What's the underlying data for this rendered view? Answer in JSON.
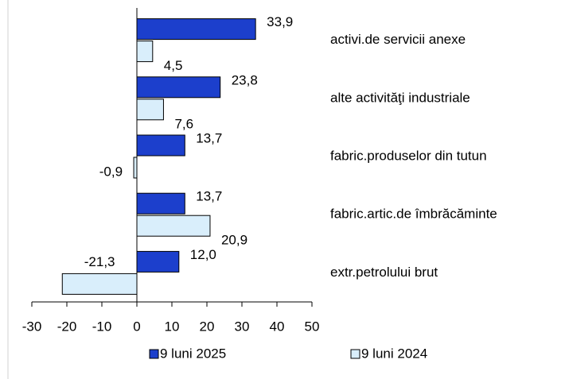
{
  "chart_data": {
    "type": "hbar",
    "categories": [
      "activi.de servicii anexe",
      "alte activităţi industriale",
      "fabric.produselor din tutun",
      "fabric.artic.de îmbrăcăminte",
      "extr.petrolului brut"
    ],
    "series": [
      {
        "name": "9 luni 2025",
        "color": "#1c3fcc",
        "values": [
          33.9,
          23.8,
          13.7,
          13.7,
          12.0
        ],
        "value_labels": [
          "33,9",
          "23,8",
          "13,7",
          "13,7",
          "12,0"
        ]
      },
      {
        "name": "9 luni 2024",
        "color": "#d9eefb",
        "values": [
          4.5,
          7.6,
          -0.9,
          20.9,
          -21.3
        ],
        "value_labels": [
          "4,5",
          "7,6",
          "-0,9",
          "20,9",
          "-21,3"
        ]
      }
    ],
    "xlim": [
      -30,
      50
    ],
    "xticks": [
      -30,
      -20,
      -10,
      0,
      10,
      20,
      30,
      40,
      50
    ],
    "legend": "bottom"
  }
}
